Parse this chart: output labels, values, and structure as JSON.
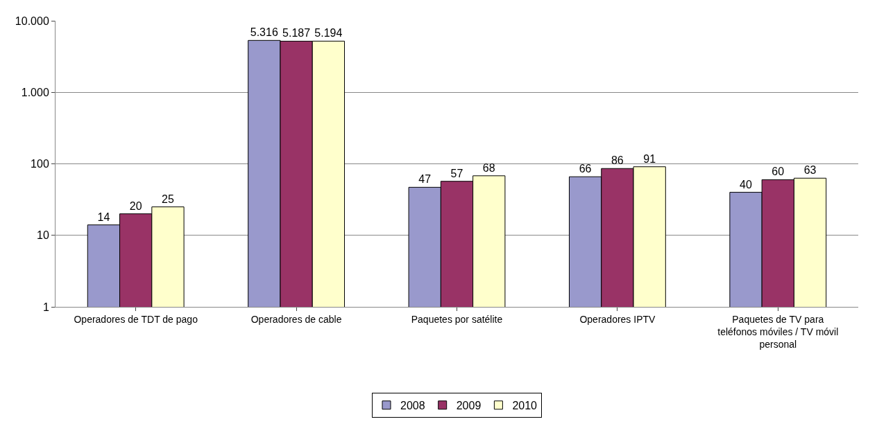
{
  "chart_data": {
    "type": "bar",
    "log": "y",
    "grid": "y",
    "legend": "bottom",
    "categories": [
      "Operadores de TDT de pago",
      "Operadores de cable",
      "Paquetes por satélite",
      "Operadores IPTV",
      "Paquetes de TV para teléfonos móviles / TV móvil personal"
    ],
    "series": [
      {
        "name": "2008",
        "color": "#9999cc",
        "values": [
          14,
          5316,
          47,
          66,
          40
        ],
        "value_labels": [
          "14",
          "5.316",
          "47",
          "66",
          "40"
        ]
      },
      {
        "name": "2009",
        "color": "#993366",
        "values": [
          20,
          5187,
          57,
          86,
          60
        ],
        "value_labels": [
          "20",
          "5.187",
          "57",
          "86",
          "60"
        ]
      },
      {
        "name": "2010",
        "color": "#ffffcc",
        "values": [
          25,
          5194,
          68,
          91,
          63
        ],
        "value_labels": [
          "25",
          "5.194",
          "68",
          "91",
          "63"
        ]
      }
    ],
    "ylim": [
      1,
      10000
    ],
    "yticks": [
      1,
      10,
      100,
      {
        "value": 1000,
        "label": "1.000"
      },
      {
        "value": 10000,
        "label": "10.000"
      }
    ]
  }
}
